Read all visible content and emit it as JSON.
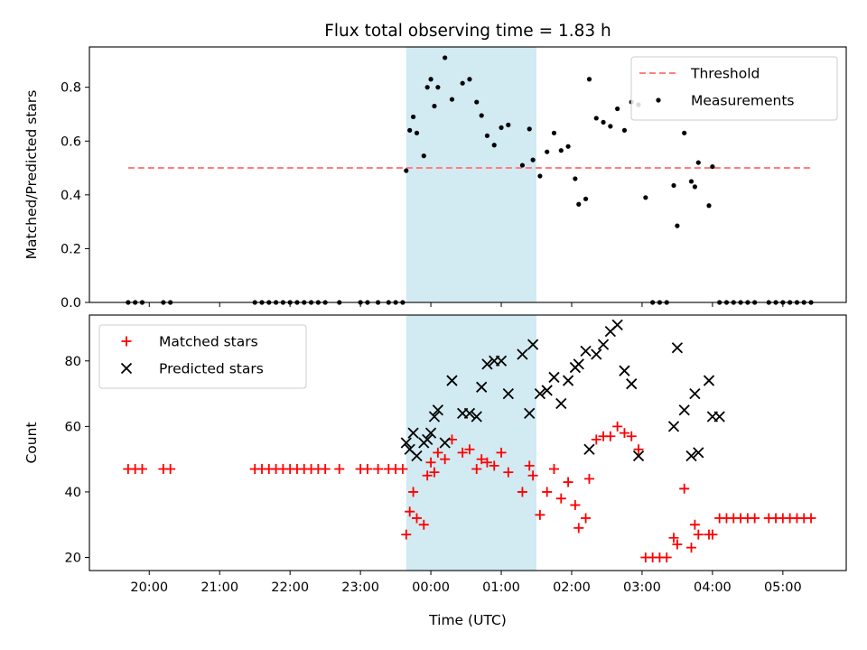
{
  "chart_data": {
    "type": "scatter",
    "title": "Flux total observing time = 1.83 h",
    "xlabel": "Time (UTC)",
    "x_unit": "hours since 00:00 UTC (negative = previous evening)",
    "xlim": [
      -4.85,
      5.9
    ],
    "x_ticks": [
      {
        "value": -4,
        "label": "20:00"
      },
      {
        "value": -3,
        "label": "21:00"
      },
      {
        "value": -2,
        "label": "22:00"
      },
      {
        "value": -1,
        "label": "23:00"
      },
      {
        "value": 0,
        "label": "00:00"
      },
      {
        "value": 1,
        "label": "01:00"
      },
      {
        "value": 2,
        "label": "02:00"
      },
      {
        "value": 3,
        "label": "03:00"
      },
      {
        "value": 4,
        "label": "04:00"
      },
      {
        "value": 5,
        "label": "05:00"
      }
    ],
    "shaded_interval": {
      "x_start": -0.35,
      "x_end": 1.5,
      "color": "#add8e6"
    },
    "panels": [
      {
        "ylabel": "Matched/Predicted stars",
        "ylim": [
          0,
          0.95
        ],
        "y_ticks": [
          {
            "value": 0,
            "label": "0.0"
          },
          {
            "value": 0.2,
            "label": "0.2"
          },
          {
            "value": 0.4,
            "label": "0.4"
          },
          {
            "value": 0.6,
            "label": "0.6"
          },
          {
            "value": 0.8,
            "label": "0.8"
          }
        ],
        "legend_position": "top-right",
        "series": [
          {
            "name": "Threshold",
            "type": "dashed-line",
            "color": "#ff7f7f",
            "x": [
              -4.3,
              5.4
            ],
            "y": [
              0.5,
              0.5
            ]
          },
          {
            "name": "Measurements",
            "type": "scatter",
            "marker": "dot",
            "color": "#000000",
            "x": [
              -4.3,
              -4.2,
              -4.1,
              -3.8,
              -3.7,
              -2.5,
              -2.4,
              -2.3,
              -2.2,
              -2.1,
              -2.0,
              -1.9,
              -1.8,
              -1.7,
              -1.6,
              -1.5,
              -1.3,
              -1.0,
              -0.9,
              -0.75,
              -0.6,
              -0.5,
              -0.4,
              -0.35,
              -0.3,
              -0.25,
              -0.2,
              -0.1,
              -0.05,
              0.0,
              0.05,
              0.1,
              0.2,
              0.3,
              0.45,
              0.55,
              0.65,
              0.72,
              0.8,
              0.9,
              1.0,
              1.1,
              1.3,
              1.4,
              1.45,
              1.55,
              1.65,
              1.75,
              1.85,
              1.95,
              2.05,
              2.1,
              2.2,
              2.25,
              2.35,
              2.45,
              2.55,
              2.65,
              2.75,
              2.85,
              2.95,
              3.05,
              3.15,
              3.25,
              3.35,
              3.45,
              3.5,
              3.6,
              3.7,
              3.75,
              3.8,
              3.95,
              4.0,
              4.1,
              4.2,
              4.3,
              4.4,
              4.5,
              4.6,
              4.8,
              4.9,
              5.0,
              5.1,
              5.2,
              5.3,
              5.4
            ],
            "y": [
              0,
              0,
              0,
              0,
              0,
              0,
              0,
              0,
              0,
              0,
              0,
              0,
              0,
              0,
              0,
              0,
              0,
              0,
              0,
              0,
              0,
              0,
              0,
              0.49,
              0.64,
              0.69,
              0.63,
              0.545,
              0.8,
              0.83,
              0.73,
              0.8,
              0.91,
              0.755,
              0.815,
              0.83,
              0.745,
              0.695,
              0.62,
              0.585,
              0.65,
              0.66,
              0.51,
              0.645,
              0.53,
              0.47,
              0.56,
              0.63,
              0.565,
              0.58,
              0.46,
              0.365,
              0.385,
              0.83,
              0.685,
              0.67,
              0.655,
              0.72,
              0.64,
              0.745,
              0.735,
              0.39,
              0,
              0,
              0,
              0.435,
              0.285,
              0.63,
              0.45,
              0.43,
              0.52,
              0.36,
              0.505,
              0,
              0,
              0,
              0,
              0,
              0,
              0,
              0,
              0,
              0,
              0,
              0,
              0
            ]
          }
        ]
      },
      {
        "ylabel": "Count",
        "ylim": [
          16,
          94
        ],
        "y_ticks": [
          {
            "value": 20,
            "label": "20"
          },
          {
            "value": 40,
            "label": "40"
          },
          {
            "value": 60,
            "label": "60"
          },
          {
            "value": 80,
            "label": "80"
          }
        ],
        "legend_position": "top-left",
        "series": [
          {
            "name": "Matched stars",
            "type": "scatter",
            "marker": "plus",
            "color": "#ff0000",
            "x": [
              -4.3,
              -4.2,
              -4.1,
              -3.8,
              -3.7,
              -2.5,
              -2.4,
              -2.3,
              -2.2,
              -2.1,
              -2.0,
              -1.9,
              -1.8,
              -1.7,
              -1.6,
              -1.5,
              -1.3,
              -1.0,
              -0.9,
              -0.75,
              -0.6,
              -0.5,
              -0.4,
              -0.35,
              -0.3,
              -0.25,
              -0.2,
              -0.1,
              -0.05,
              0.0,
              0.05,
              0.1,
              0.2,
              0.3,
              0.45,
              0.55,
              0.65,
              0.72,
              0.8,
              0.9,
              1.0,
              1.1,
              1.3,
              1.4,
              1.45,
              1.55,
              1.65,
              1.75,
              1.85,
              1.95,
              2.05,
              2.1,
              2.2,
              2.25,
              2.35,
              2.45,
              2.55,
              2.65,
              2.75,
              2.85,
              2.95,
              3.05,
              3.15,
              3.25,
              3.35,
              3.45,
              3.5,
              3.6,
              3.7,
              3.75,
              3.8,
              3.95,
              4.0,
              4.1,
              4.2,
              4.3,
              4.4,
              4.5,
              4.6,
              4.8,
              4.9,
              5.0,
              5.1,
              5.2,
              5.3,
              5.4
            ],
            "y": [
              47,
              47,
              47,
              47,
              47,
              47,
              47,
              47,
              47,
              47,
              47,
              47,
              47,
              47,
              47,
              47,
              47,
              47,
              47,
              47,
              47,
              47,
              47,
              27,
              34,
              40,
              32,
              30,
              45,
              49,
              46,
              52,
              50,
              56,
              52,
              53,
              47,
              50,
              49,
              48,
              52,
              46,
              40,
              48,
              45,
              33,
              40,
              47,
              38,
              43,
              36,
              29,
              32,
              44,
              56,
              57,
              57,
              60,
              58,
              57,
              53,
              20,
              20,
              20,
              20,
              26,
              24,
              41,
              23,
              30,
              27,
              27,
              27,
              32,
              32,
              32,
              32,
              32,
              32,
              32,
              32,
              32,
              32,
              32,
              32,
              32
            ]
          },
          {
            "name": "Predicted stars",
            "type": "scatter",
            "marker": "x",
            "color": "#000000",
            "x": [
              -0.35,
              -0.3,
              -0.25,
              -0.2,
              -0.1,
              -0.05,
              0.0,
              0.05,
              0.1,
              0.2,
              0.3,
              0.45,
              0.55,
              0.65,
              0.72,
              0.8,
              0.9,
              1.0,
              1.1,
              1.3,
              1.4,
              1.45,
              1.55,
              1.65,
              1.75,
              1.85,
              1.95,
              2.05,
              2.1,
              2.2,
              2.25,
              2.35,
              2.45,
              2.55,
              2.65,
              2.75,
              2.85,
              2.95,
              3.45,
              3.5,
              3.6,
              3.7,
              3.75,
              3.8,
              3.95,
              4.0,
              4.1
            ],
            "y": [
              55,
              53,
              58,
              51,
              55,
              56,
              58,
              63,
              65,
              55,
              74,
              64,
              64,
              63,
              72,
              79,
              80,
              80,
              70,
              82,
              64,
              85,
              70,
              71,
              75,
              67,
              74,
              78,
              79,
              83,
              53,
              82,
              85,
              89,
              91,
              77,
              73,
              51,
              60,
              84,
              65,
              51,
              70,
              52,
              74,
              63,
              63
            ]
          }
        ]
      }
    ]
  }
}
